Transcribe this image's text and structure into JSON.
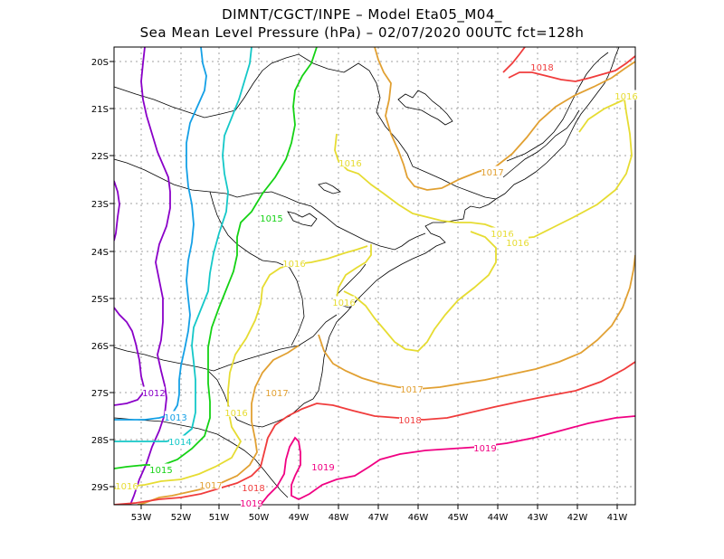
{
  "title": {
    "line1": "DIMNT/CGCT/INPE –  Model Eta05_M04_",
    "line2": "Sea Mean Level Pressure (hPa) – 02/07/2020 00UTC fct=128h"
  },
  "axes": {
    "lat_labels": [
      "20S",
      "21S",
      "22S",
      "23S",
      "24S",
      "25S",
      "26S",
      "27S",
      "28S",
      "29S"
    ],
    "lon_labels": [
      "53W",
      "52W",
      "51W",
      "50W",
      "49W",
      "48W",
      "47W",
      "46W",
      "45W",
      "44W",
      "43W",
      "42W",
      "41W"
    ]
  },
  "colors": {
    "1012": "#8a00c8",
    "1013": "#14a0e6",
    "1014": "#14c8c8",
    "1015": "#14d214",
    "1016": "#e6dc32",
    "1017": "#e1a032",
    "1018": "#f03c3c",
    "1019": "#f00082",
    "grid": "#a0a0a0",
    "coast": "#000000"
  },
  "contour_labels": [
    {
      "text": "1012",
      "level": "1012"
    },
    {
      "text": "1013",
      "level": "1013"
    },
    {
      "text": "1014",
      "level": "1014"
    },
    {
      "text": "1015",
      "level": "1015"
    },
    {
      "text": "1015",
      "level": "1015"
    },
    {
      "text": "1016",
      "level": "1016"
    },
    {
      "text": "1016",
      "level": "1016"
    },
    {
      "text": "1016",
      "level": "1016"
    },
    {
      "text": "1016",
      "level": "1016"
    },
    {
      "text": "1016",
      "level": "1016"
    },
    {
      "text": "1016",
      "level": "1016"
    },
    {
      "text": "1016",
      "level": "1016"
    },
    {
      "text": "1016",
      "level": "1016"
    },
    {
      "text": "1017",
      "level": "1017"
    },
    {
      "text": "1017",
      "level": "1017"
    },
    {
      "text": "1017",
      "level": "1017"
    },
    {
      "text": "1017",
      "level": "1017"
    },
    {
      "text": "1018",
      "level": "1018"
    },
    {
      "text": "1018",
      "level": "1018"
    },
    {
      "text": "1018",
      "level": "1018"
    },
    {
      "text": "1019",
      "level": "1019"
    },
    {
      "text": "1019",
      "level": "1019"
    },
    {
      "text": "1019",
      "level": "1019"
    }
  ]
}
